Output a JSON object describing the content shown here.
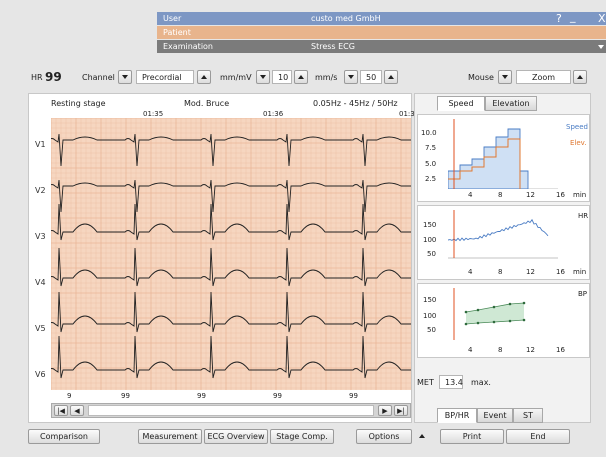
{
  "header": {
    "rows": [
      {
        "key": "User",
        "value": "custo med GmbH",
        "bg": "#7d97c4"
      },
      {
        "key": "Patient",
        "value": "",
        "bg": "#e8b48c"
      },
      {
        "key": "Examination",
        "value": "Stress ECG",
        "bg": "#7b7b7b"
      }
    ],
    "help": "?",
    "minimize": "_",
    "close": "X"
  },
  "toolbar": {
    "hr_label": "HR",
    "hr_value": "99",
    "channel_label": "Channel",
    "precordial_value": "Precordial",
    "mmmv_label": "mm/mV",
    "mmmv_value": "10",
    "mms_label": "mm/s",
    "mms_value": "50",
    "mouse_label": "Mouse",
    "zoom_value": "Zoom"
  },
  "ecg": {
    "stage": "Resting stage",
    "protocol": "Mod. Bruce",
    "filter": "0.05Hz - 45Hz / 50Hz",
    "times": [
      "01:35",
      "01:36",
      "01:3"
    ],
    "leads": [
      "V1",
      "V2",
      "V3",
      "V4",
      "V5",
      "V6"
    ],
    "beat_labels": [
      "9",
      "99",
      "99",
      "99",
      "99"
    ],
    "bg": "#f6d6c0",
    "grid": "#eab698"
  },
  "right_tabs": {
    "speed": "Speed",
    "elevation": "Elevation"
  },
  "chart_speed": {
    "yticks": [
      "10.0",
      "7.5",
      "5.0",
      "2.5"
    ],
    "xticks": [
      "4",
      "8",
      "12",
      "16"
    ],
    "unit": "min",
    "legend_speed": "Speed",
    "legend_elev": "Elev.",
    "speed_color": "#4a7cc4",
    "elev_color": "#e07830"
  },
  "chart_hr": {
    "label": "HR",
    "yticks": [
      "150",
      "100",
      "50"
    ],
    "xticks": [
      "4",
      "8",
      "12",
      "16"
    ],
    "unit": "min"
  },
  "chart_bp": {
    "label": "BP",
    "yticks": [
      "150",
      "100",
      "50"
    ],
    "xticks": [
      "4",
      "8",
      "12",
      "16"
    ]
  },
  "met": {
    "label": "MET",
    "value": "13.4",
    "max_label": "max."
  },
  "bottom_tabs": {
    "bphr": "BP/HR",
    "event": "Event",
    "st": "ST"
  },
  "footer": {
    "comparison": "Comparison",
    "measurement": "Measurement",
    "ecg_overview": "ECG Overview",
    "stage_comp": "Stage Comp.",
    "options": "Options",
    "print": "Print",
    "end": "End"
  }
}
